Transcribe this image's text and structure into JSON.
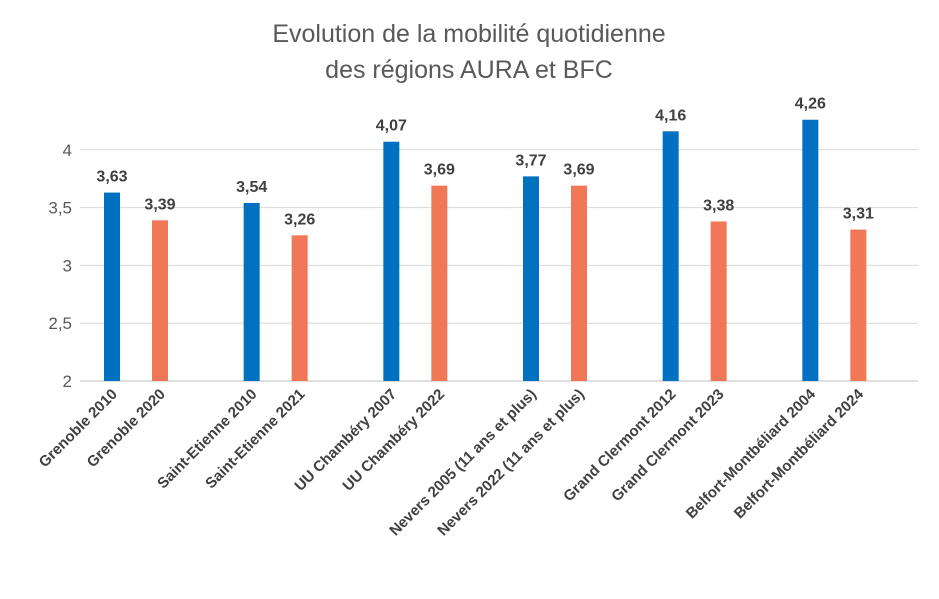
{
  "chart_data": {
    "type": "bar",
    "title_lines": [
      "Evolution de la mobilité quotidienne",
      "des régions AURA et BFC"
    ],
    "categories": [
      "Grenoble 2010",
      "Grenoble 2020",
      "Saint-Etienne 2010",
      "Saint-Etienne 2021",
      "UU Chambéry 2007",
      "UU Chambéry 2022",
      "Nevers 2005 (11 ans et plus)",
      "Nevers 2022 (11 ans et plus)",
      "Grand Clermont 2012",
      "Grand Clermont 2023",
      "Belfort-Montbéliard 2004",
      "Belfort-Montbéliard 2024"
    ],
    "values": [
      3.63,
      3.39,
      3.54,
      3.26,
      4.07,
      3.69,
      3.77,
      3.69,
      4.16,
      3.38,
      4.26,
      3.31
    ],
    "data_labels": [
      "3,63",
      "3,39",
      "3,54",
      "3,26",
      "4,07",
      "3,69",
      "3,77",
      "3,69",
      "4,16",
      "3,38",
      "4,26",
      "3,31"
    ],
    "bar_colors": [
      "#0070C0",
      "#F07857"
    ],
    "ylim": [
      2,
      4.26
    ],
    "yticks": [
      2,
      2.5,
      3,
      3.5,
      4
    ],
    "ytick_labels": [
      "2",
      "2,5",
      "3",
      "3,5",
      "4"
    ],
    "xlabel": "",
    "ylabel": "",
    "grid": true,
    "legend": "none"
  }
}
